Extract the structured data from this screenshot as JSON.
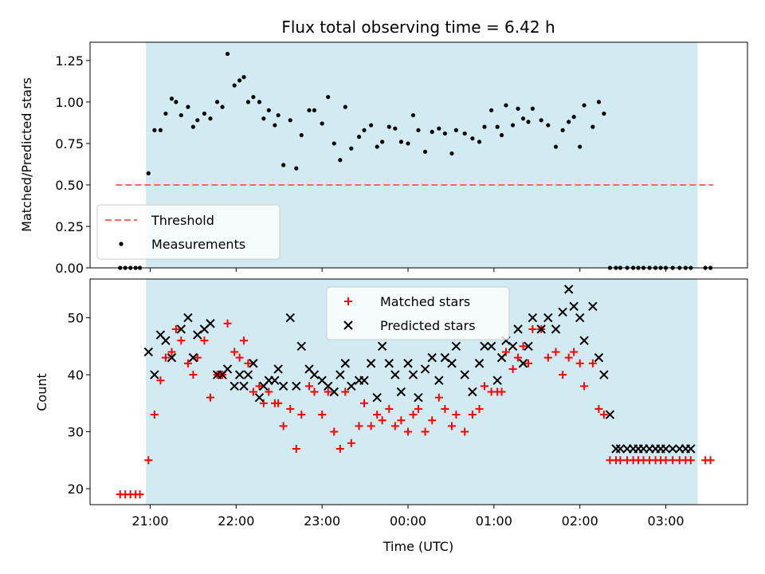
{
  "chart_data": [
    {
      "type": "scatter",
      "title": "Flux total observing time = 6.42 h",
      "ylabel": "Matched/Predicted stars",
      "xlabel": "",
      "x_unit": "hours since 00:00 UTC",
      "xlim": [
        -3.7,
        3.95
      ],
      "ylim": [
        0.0,
        1.36
      ],
      "yticks": [
        0.0,
        0.25,
        0.5,
        0.75,
        1.0,
        1.25
      ],
      "ytick_labels": [
        "0.00",
        "0.25",
        "0.50",
        "0.75",
        "1.00",
        "1.25"
      ],
      "observing_window": [
        -3.05,
        3.37
      ],
      "window_color": "#add8e6",
      "legend_position": "lower-left",
      "threshold": {
        "name": "Threshold",
        "y": 0.5,
        "x": [
          -3.4,
          3.55
        ],
        "color": "#ff6666",
        "style": "dashed"
      },
      "series": [
        {
          "name": "Measurements",
          "color": "#000000",
          "marker": "dot",
          "x": [
            -3.35,
            -3.29,
            -3.23,
            -3.17,
            -3.12,
            -3.02,
            -2.95,
            -2.88,
            -2.82,
            -2.75,
            -2.7,
            -2.64,
            -2.56,
            -2.5,
            -2.45,
            -2.37,
            -2.3,
            -2.22,
            -2.16,
            -2.1,
            -2.02,
            -1.96,
            -1.91,
            -1.86,
            -1.8,
            -1.73,
            -1.68,
            -1.62,
            -1.55,
            -1.51,
            -1.45,
            -1.37,
            -1.3,
            -1.24,
            -1.15,
            -1.09,
            -1.0,
            -0.93,
            -0.86,
            -0.79,
            -0.73,
            -0.66,
            -0.57,
            -0.51,
            -0.43,
            -0.36,
            -0.3,
            -0.22,
            -0.15,
            -0.08,
            0.0,
            0.06,
            0.12,
            0.2,
            0.28,
            0.36,
            0.43,
            0.51,
            0.56,
            0.66,
            0.75,
            0.83,
            0.89,
            0.97,
            1.04,
            1.09,
            1.14,
            1.22,
            1.28,
            1.34,
            1.4,
            1.45,
            1.55,
            1.63,
            1.72,
            1.8,
            1.87,
            1.93,
            2.0,
            2.05,
            2.15,
            2.22,
            2.28,
            2.35,
            2.42,
            2.47,
            2.55,
            2.62,
            2.68,
            2.74,
            2.81,
            2.88,
            2.94,
            3.0,
            3.08,
            3.16,
            3.23,
            3.29,
            3.46,
            3.52
          ],
          "y": [
            0.0,
            0.0,
            0.0,
            0.0,
            0.0,
            0.57,
            0.83,
            0.83,
            0.93,
            1.02,
            1.0,
            0.92,
            0.97,
            0.85,
            0.89,
            0.93,
            0.9,
            1.0,
            0.97,
            1.29,
            1.1,
            1.13,
            1.15,
            1.0,
            1.03,
            1.0,
            0.9,
            0.95,
            0.86,
            0.92,
            0.62,
            0.89,
            0.6,
            0.8,
            0.95,
            0.95,
            0.87,
            1.03,
            0.75,
            0.65,
            0.97,
            0.72,
            0.79,
            0.83,
            0.86,
            0.73,
            0.76,
            0.85,
            0.84,
            0.76,
            0.75,
            0.92,
            0.83,
            0.7,
            0.82,
            0.84,
            0.81,
            0.69,
            0.83,
            0.81,
            0.78,
            0.76,
            0.85,
            0.95,
            0.85,
            0.8,
            0.98,
            0.86,
            0.96,
            0.9,
            0.88,
            0.96,
            0.89,
            0.86,
            0.73,
            0.83,
            0.88,
            0.91,
            0.73,
            0.98,
            0.85,
            1.0,
            0.93,
            0.0,
            0.0,
            0.0,
            0.0,
            0.0,
            0.0,
            0.0,
            0.0,
            0.0,
            0.0,
            0.0,
            0.0,
            0.0,
            0.0,
            0.0,
            0.0,
            0.0
          ]
        }
      ]
    },
    {
      "type": "scatter",
      "ylabel": "Count",
      "xlabel": "Time (UTC)",
      "x_unit": "hours since 00:00 UTC",
      "xlim": [
        -3.7,
        3.95
      ],
      "ylim": [
        17.2,
        56.8
      ],
      "yticks": [
        20,
        30,
        40,
        50
      ],
      "xticks": [
        -3,
        -2,
        -1,
        0,
        1,
        2,
        3
      ],
      "xtick_labels": [
        "21:00",
        "22:00",
        "23:00",
        "00:00",
        "01:00",
        "02:00",
        "03:00"
      ],
      "observing_window": [
        -3.05,
        3.37
      ],
      "window_color": "#add8e6",
      "legend_position": "top-center",
      "series": [
        {
          "name": "Matched stars",
          "color": "#ff0000",
          "marker": "plus",
          "x": [
            -3.35,
            -3.29,
            -3.23,
            -3.17,
            -3.12,
            -3.02,
            -2.95,
            -2.88,
            -2.82,
            -2.75,
            -2.7,
            -2.64,
            -2.56,
            -2.5,
            -2.45,
            -2.37,
            -2.3,
            -2.22,
            -2.16,
            -2.1,
            -2.02,
            -1.96,
            -1.91,
            -1.86,
            -1.8,
            -1.73,
            -1.68,
            -1.62,
            -1.55,
            -1.51,
            -1.45,
            -1.37,
            -1.3,
            -1.24,
            -1.15,
            -1.09,
            -1.0,
            -0.93,
            -0.86,
            -0.79,
            -0.73,
            -0.66,
            -0.57,
            -0.51,
            -0.43,
            -0.36,
            -0.3,
            -0.22,
            -0.15,
            -0.08,
            0.0,
            0.06,
            0.12,
            0.2,
            0.28,
            0.36,
            0.43,
            0.51,
            0.56,
            0.66,
            0.75,
            0.83,
            0.89,
            0.97,
            1.04,
            1.09,
            1.14,
            1.22,
            1.28,
            1.34,
            1.4,
            1.45,
            1.55,
            1.63,
            1.72,
            1.8,
            1.87,
            1.93,
            2.0,
            2.05,
            2.15,
            2.22,
            2.28,
            2.35,
            2.42,
            2.47,
            2.55,
            2.62,
            2.68,
            2.74,
            2.81,
            2.88,
            2.94,
            3.0,
            3.08,
            3.16,
            3.23,
            3.29,
            3.46,
            3.52
          ],
          "y": [
            19,
            19,
            19,
            19,
            19,
            25,
            33,
            39,
            43,
            44,
            48,
            46,
            42,
            40,
            43,
            46,
            36,
            40,
            40,
            49,
            44,
            43,
            46,
            42,
            37,
            38,
            35,
            37,
            35,
            35,
            31,
            34,
            27,
            33,
            38,
            37,
            33,
            37,
            30,
            27,
            37,
            28,
            31,
            35,
            31,
            33,
            32,
            34,
            31,
            32,
            30,
            33,
            34,
            30,
            32,
            36,
            34,
            31,
            33,
            30,
            33,
            34,
            38,
            37,
            37,
            37,
            44,
            41,
            43,
            45,
            42,
            48,
            48,
            43,
            44,
            40,
            43,
            44,
            42,
            38,
            42,
            34,
            33,
            25,
            25,
            25,
            25,
            25,
            25,
            25,
            25,
            25,
            25,
            25,
            25,
            25,
            25,
            25,
            25,
            25
          ]
        },
        {
          "name": "Predicted stars",
          "color": "#000000",
          "marker": "cross",
          "x": [
            -3.02,
            -2.95,
            -2.88,
            -2.82,
            -2.75,
            -2.64,
            -2.56,
            -2.5,
            -2.45,
            -2.37,
            -2.3,
            -2.22,
            -2.16,
            -2.1,
            -2.02,
            -1.96,
            -1.91,
            -1.86,
            -1.8,
            -1.73,
            -1.68,
            -1.62,
            -1.55,
            -1.51,
            -1.45,
            -1.37,
            -1.3,
            -1.24,
            -1.15,
            -1.09,
            -1.0,
            -0.93,
            -0.86,
            -0.79,
            -0.73,
            -0.66,
            -0.57,
            -0.51,
            -0.43,
            -0.36,
            -0.3,
            -0.22,
            -0.15,
            -0.08,
            0.0,
            0.06,
            0.12,
            0.2,
            0.28,
            0.36,
            0.43,
            0.51,
            0.56,
            0.66,
            0.75,
            0.83,
            0.89,
            0.97,
            1.04,
            1.09,
            1.14,
            1.22,
            1.28,
            1.34,
            1.4,
            1.45,
            1.55,
            1.63,
            1.72,
            1.8,
            1.87,
            1.93,
            2.0,
            2.05,
            2.15,
            2.22,
            2.28,
            2.35,
            2.42,
            2.47,
            2.55,
            2.62,
            2.68,
            2.74,
            2.81,
            2.88,
            2.94,
            3.0,
            3.08,
            3.16,
            3.23,
            3.29
          ],
          "y": [
            44,
            40,
            47,
            46,
            43,
            48,
            50,
            43,
            47,
            48,
            49,
            40,
            40,
            41,
            38,
            40,
            38,
            40,
            42,
            36,
            38,
            39,
            39,
            41,
            38,
            50,
            38,
            45,
            41,
            40,
            39,
            38,
            37,
            40,
            42,
            38,
            39,
            39,
            42,
            36,
            45,
            42,
            40,
            37,
            42,
            40,
            36,
            41,
            43,
            39,
            43,
            42,
            45,
            40,
            37,
            42,
            45,
            45,
            39,
            43,
            46,
            45,
            48,
            42,
            45,
            50,
            48,
            50,
            48,
            51,
            55,
            52,
            50,
            46,
            52,
            43,
            40,
            33,
            27,
            27,
            27,
            27,
            27,
            27,
            27,
            27,
            27,
            27,
            27,
            27,
            27,
            27
          ]
        }
      ]
    }
  ]
}
